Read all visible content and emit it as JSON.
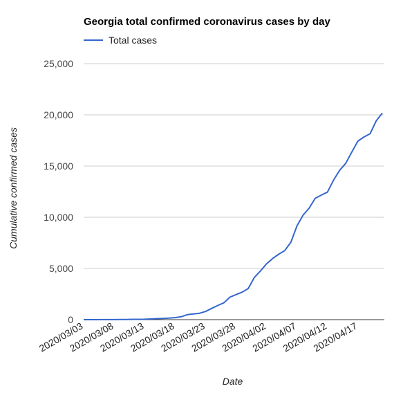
{
  "chart_data": {
    "type": "line",
    "title": "Georgia total confirmed coronavirus cases by day",
    "xlabel": "Date",
    "ylabel": "Cumulative confirmed cases",
    "ylim": [
      0,
      25000
    ],
    "y_ticks": [
      0,
      5000,
      10000,
      15000,
      20000,
      25000
    ],
    "y_tick_labels": [
      "0",
      "5,000",
      "10,000",
      "15,000",
      "20,000",
      "25,000"
    ],
    "x_tick_labels": [
      "2020/03/03",
      "2020/03/08",
      "2020/03/13",
      "2020/03/18",
      "2020/03/23",
      "2020/03/28",
      "2020/04/02",
      "2020/04/07",
      "2020/04/12",
      "2020/04/17"
    ],
    "grid": true,
    "legend": "top-left",
    "series_color": "#3366cc",
    "series": [
      {
        "name": "Total cases",
        "x": [
          "2020/03/03",
          "2020/03/04",
          "2020/03/05",
          "2020/03/06",
          "2020/03/07",
          "2020/03/08",
          "2020/03/09",
          "2020/03/10",
          "2020/03/11",
          "2020/03/12",
          "2020/03/13",
          "2020/03/14",
          "2020/03/15",
          "2020/03/16",
          "2020/03/17",
          "2020/03/18",
          "2020/03/19",
          "2020/03/20",
          "2020/03/21",
          "2020/03/22",
          "2020/03/23",
          "2020/03/24",
          "2020/03/25",
          "2020/03/26",
          "2020/03/27",
          "2020/03/28",
          "2020/03/29",
          "2020/03/30",
          "2020/03/31",
          "2020/04/01",
          "2020/04/02",
          "2020/04/03",
          "2020/04/04",
          "2020/04/05",
          "2020/04/06",
          "2020/04/07",
          "2020/04/08",
          "2020/04/09",
          "2020/04/10",
          "2020/04/11",
          "2020/04/12",
          "2020/04/13",
          "2020/04/14",
          "2020/04/15",
          "2020/04/16",
          "2020/04/17",
          "2020/04/18",
          "2020/04/19",
          "2020/04/20",
          "2020/04/21"
        ],
        "values": [
          2,
          2,
          2,
          6,
          6,
          7,
          17,
          22,
          31,
          37,
          42,
          66,
          99,
          121,
          146,
          197,
          287,
          485,
          555,
          620,
          800,
          1097,
          1387,
          1643,
          2198,
          2446,
          2683,
          3032,
          4117,
          4748,
          5444,
          5967,
          6383,
          6742,
          7558,
          9156,
          10204,
          10885,
          11851,
          12159,
          12452,
          13621,
          14578,
          15260,
          16368,
          17432,
          17841,
          18156,
          19407,
          20166
        ]
      }
    ]
  }
}
